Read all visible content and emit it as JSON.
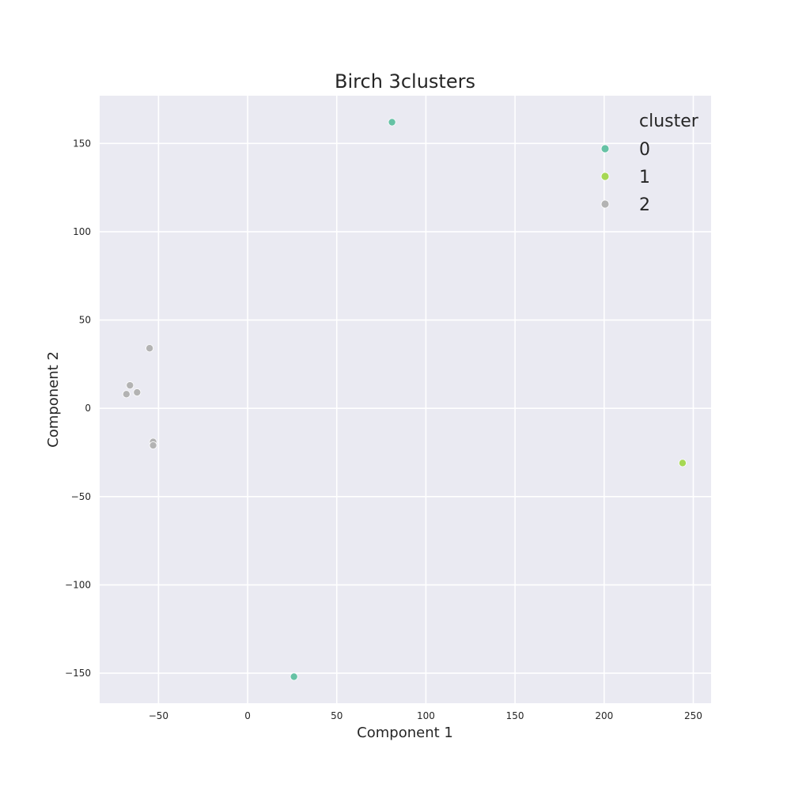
{
  "chart_data": {
    "type": "scatter",
    "title": "Birch 3clusters",
    "xlabel": "Component 1",
    "ylabel": "Component 2",
    "xlim": [
      -83,
      260
    ],
    "ylim": [
      -167,
      177
    ],
    "xticks": [
      -50,
      0,
      50,
      100,
      150,
      200,
      250
    ],
    "yticks": [
      -150,
      -100,
      -50,
      0,
      50,
      100,
      150
    ],
    "grid": true,
    "legend": {
      "title": "cluster",
      "placement": "top-right"
    },
    "series": [
      {
        "name": "0",
        "color": "#66c2a5",
        "points": [
          {
            "x": 81,
            "y": 162
          },
          {
            "x": 26,
            "y": -152
          }
        ]
      },
      {
        "name": "1",
        "color": "#a6d854",
        "points": [
          {
            "x": 244,
            "y": -31
          }
        ]
      },
      {
        "name": "2",
        "color": "#b3b3b3",
        "points": [
          {
            "x": -55,
            "y": 34
          },
          {
            "x": -66,
            "y": 13
          },
          {
            "x": -62,
            "y": 9
          },
          {
            "x": -68,
            "y": 8
          },
          {
            "x": -53,
            "y": -19
          },
          {
            "x": -53,
            "y": -21
          }
        ]
      }
    ]
  }
}
